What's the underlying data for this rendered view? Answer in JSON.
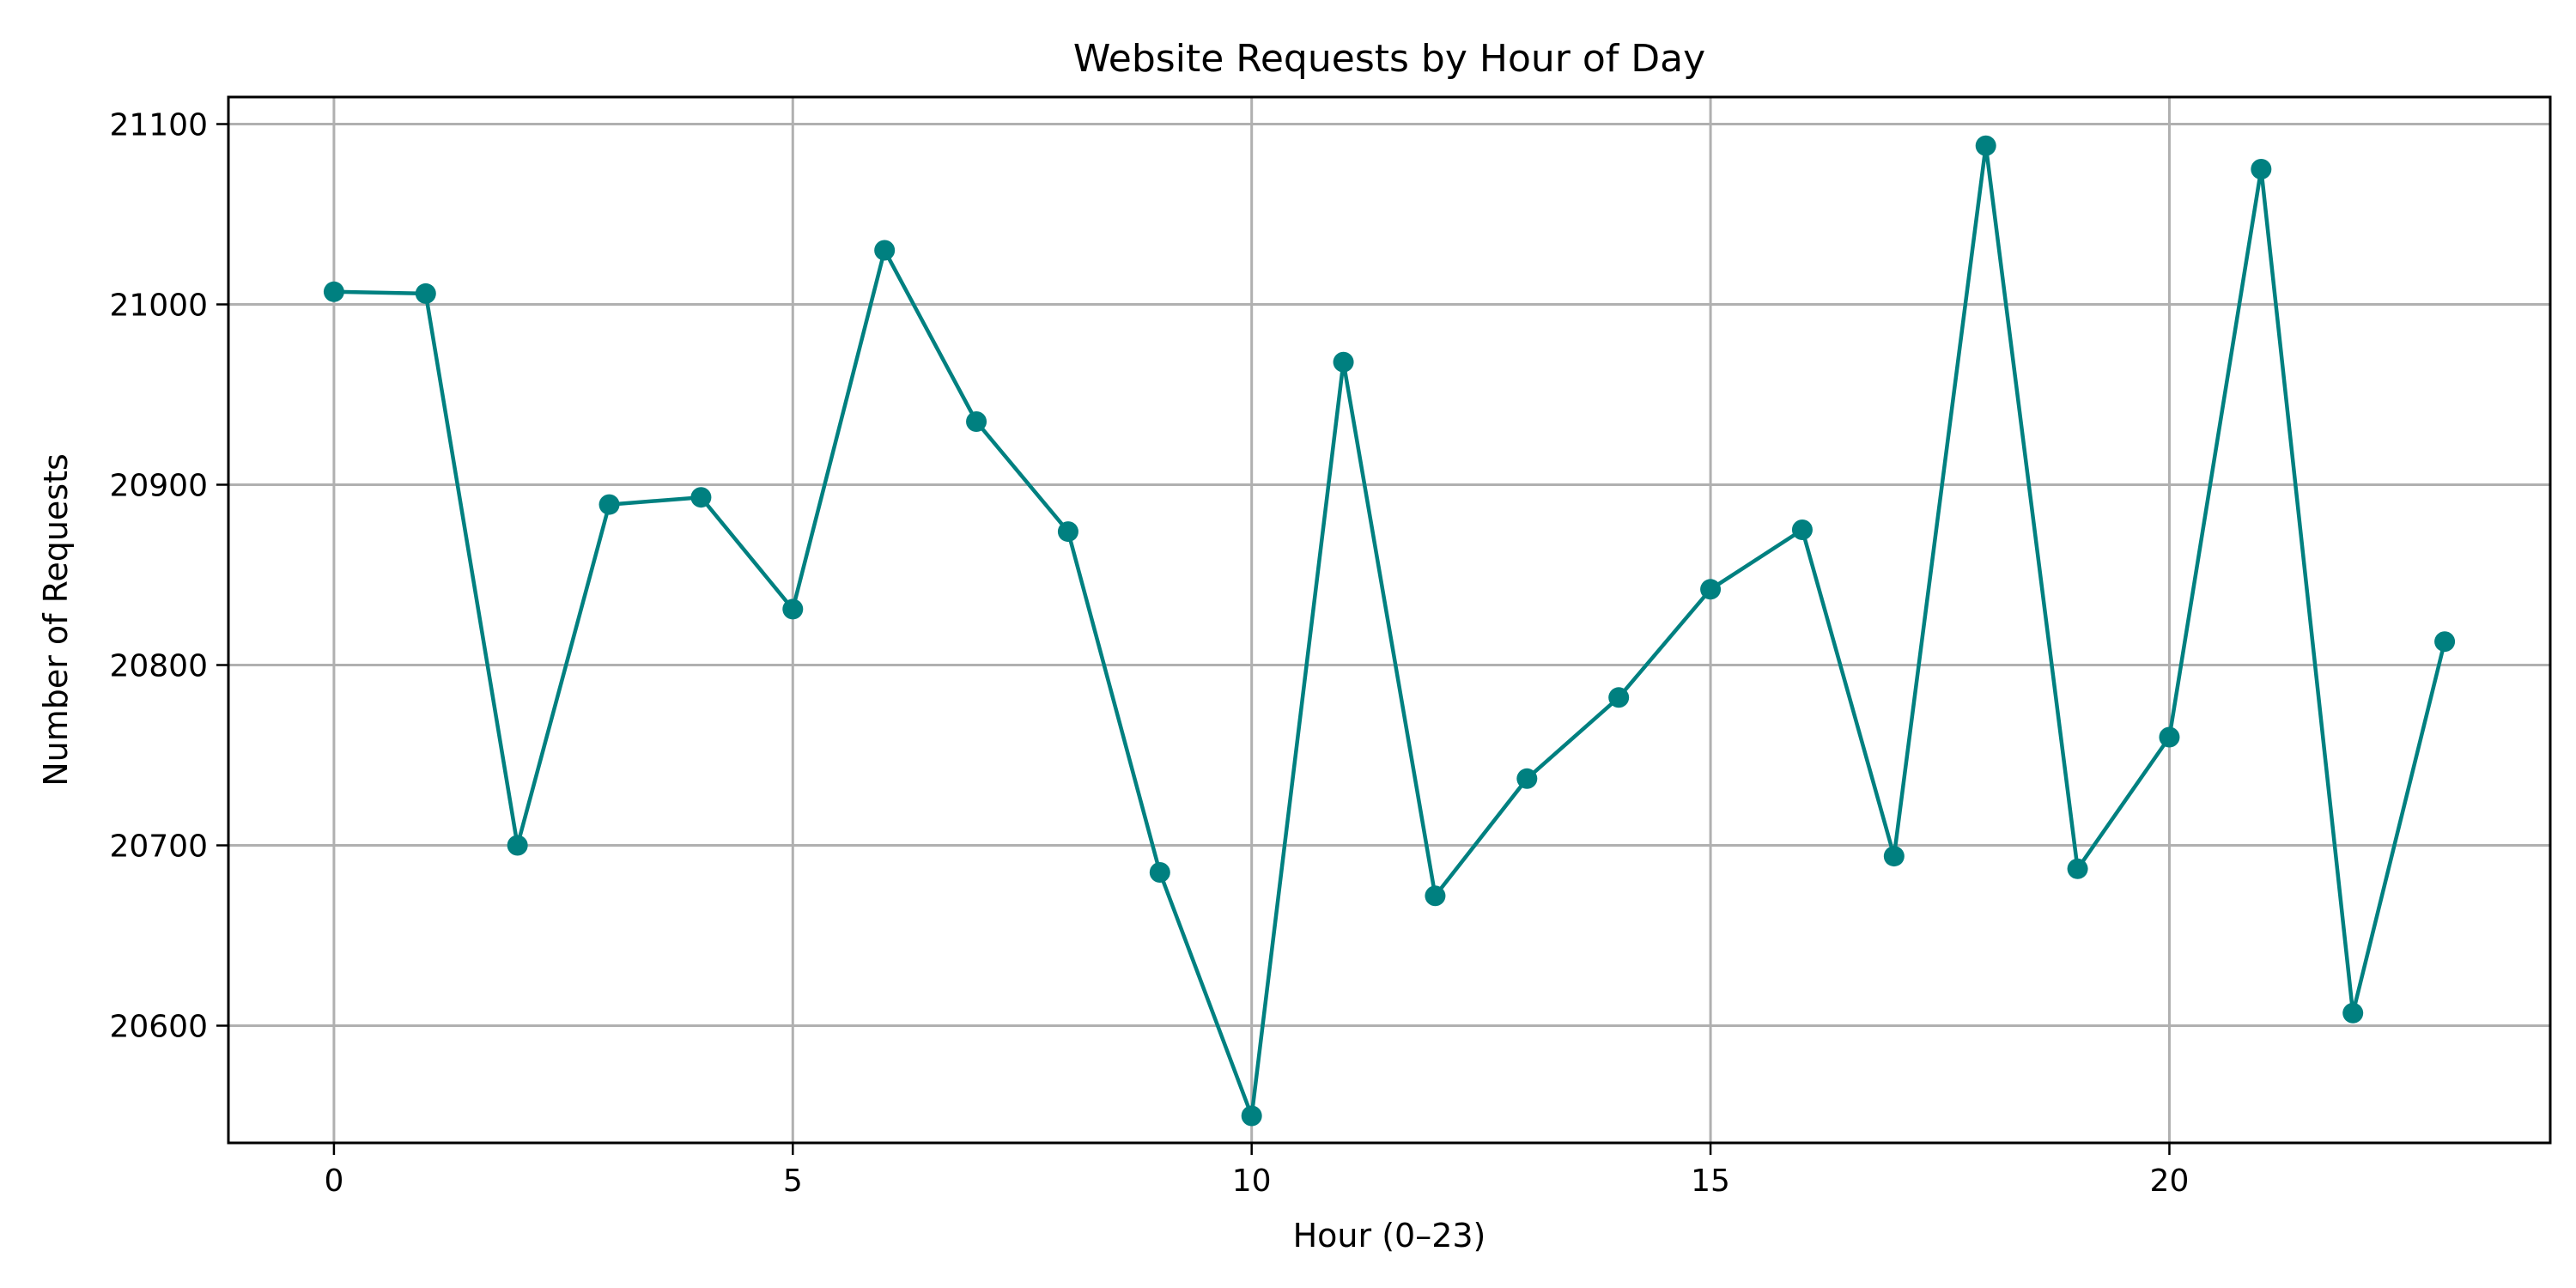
{
  "chart_data": {
    "type": "line",
    "title": "Website Requests by Hour of Day",
    "xlabel": "Hour (0–23)",
    "ylabel": "Number of Requests",
    "xlim": [
      -1.15,
      24.15
    ],
    "ylim": [
      20535,
      21115
    ],
    "xticks": [
      0,
      5,
      10,
      15,
      20
    ],
    "yticks": [
      20600,
      20700,
      20800,
      20900,
      21000,
      21100
    ],
    "grid": true,
    "marker": "circle",
    "color": "#008080",
    "x": [
      0,
      1,
      2,
      3,
      4,
      5,
      6,
      7,
      8,
      9,
      10,
      11,
      12,
      13,
      14,
      15,
      16,
      17,
      18,
      19,
      20,
      21,
      22,
      23
    ],
    "series": [
      {
        "values": [
          21007,
          21006,
          20700,
          20889,
          20893,
          20831,
          21030,
          20935,
          20874,
          20685,
          20550,
          20968,
          20672,
          20737,
          20782,
          20842,
          20875,
          20694,
          21088,
          20687,
          20760,
          21075,
          20607,
          20813
        ]
      }
    ]
  }
}
